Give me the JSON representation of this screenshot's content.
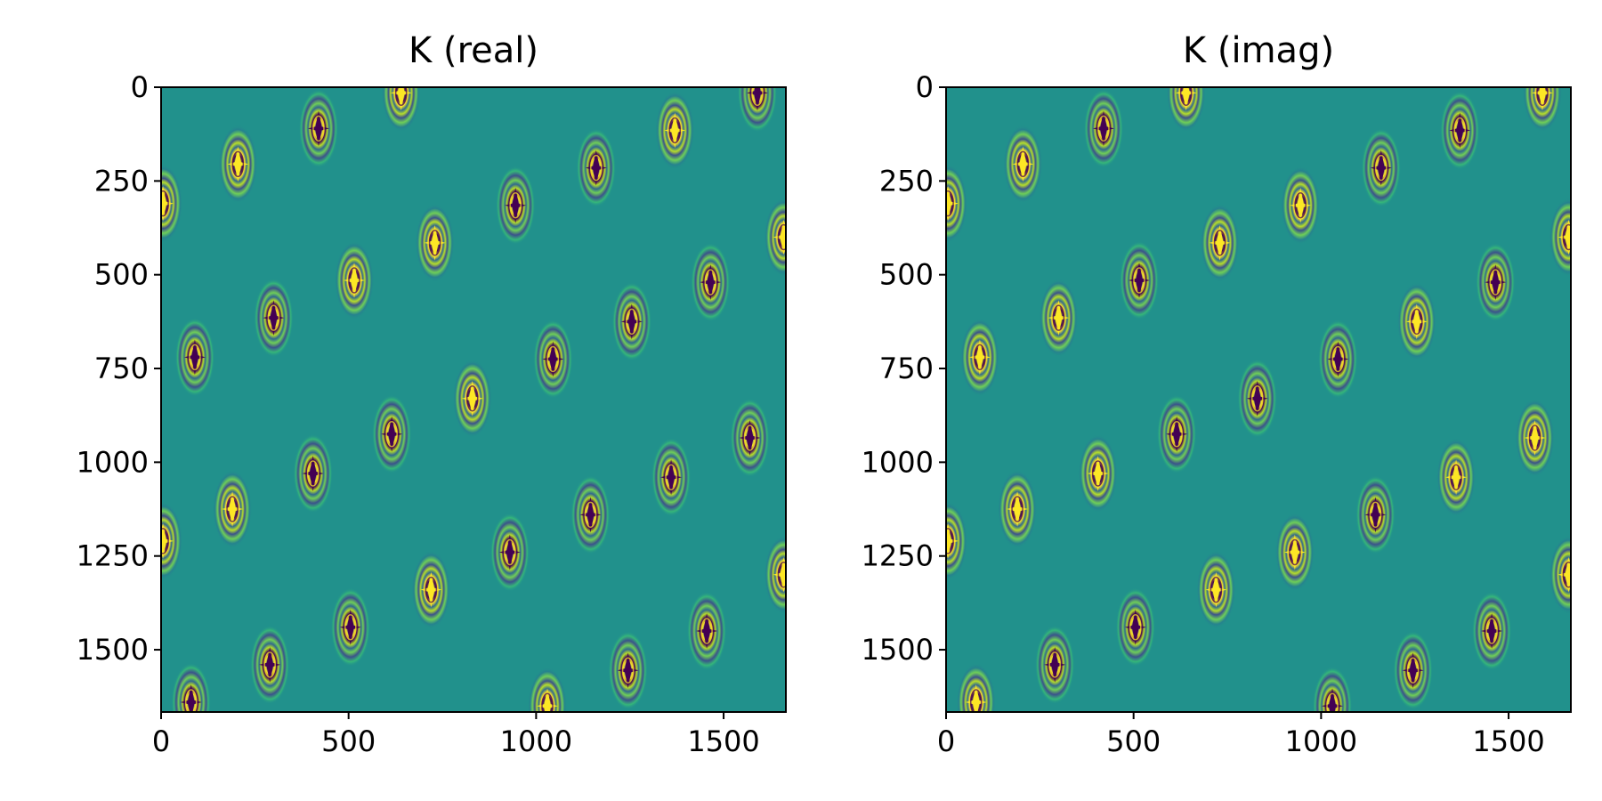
{
  "chart_data": [
    {
      "type": "heatmap",
      "title": "K (real)",
      "xlabel": "",
      "ylabel": "",
      "xlim": [
        0,
        1666
      ],
      "ylim": [
        1666,
        0
      ],
      "x_ticks": [
        "0",
        "500",
        "1000",
        "1500"
      ],
      "y_ticks": [
        "0",
        "250",
        "500",
        "750",
        "1000",
        "1250",
        "1500"
      ],
      "colormap": "viridis",
      "background_color": "#21918c",
      "grid": false,
      "spots": [
        {
          "x": 640,
          "y": 15,
          "sign": 1
        },
        {
          "x": 1590,
          "y": 15,
          "sign": -1
        },
        {
          "x": 420,
          "y": 110,
          "sign": -1
        },
        {
          "x": 1370,
          "y": 115,
          "sign": 1
        },
        {
          "x": 205,
          "y": 205,
          "sign": 1
        },
        {
          "x": 1160,
          "y": 215,
          "sign": -1
        },
        {
          "x": 945,
          "y": 315,
          "sign": -1
        },
        {
          "x": 730,
          "y": 415,
          "sign": 1
        },
        {
          "x": 515,
          "y": 515,
          "sign": 1
        },
        {
          "x": 1465,
          "y": 520,
          "sign": -1
        },
        {
          "x": 300,
          "y": 615,
          "sign": -1
        },
        {
          "x": 1255,
          "y": 625,
          "sign": -1
        },
        {
          "x": 90,
          "y": 720,
          "sign": -1
        },
        {
          "x": 1045,
          "y": 725,
          "sign": -1
        },
        {
          "x": 830,
          "y": 830,
          "sign": 1
        },
        {
          "x": 615,
          "y": 925,
          "sign": -1
        },
        {
          "x": 1570,
          "y": 935,
          "sign": -1
        },
        {
          "x": 405,
          "y": 1030,
          "sign": -1
        },
        {
          "x": 1360,
          "y": 1040,
          "sign": -1
        },
        {
          "x": 190,
          "y": 1125,
          "sign": 1
        },
        {
          "x": 1145,
          "y": 1140,
          "sign": -1
        },
        {
          "x": 930,
          "y": 1240,
          "sign": -1
        },
        {
          "x": 720,
          "y": 1340,
          "sign": 1
        },
        {
          "x": 505,
          "y": 1440,
          "sign": -1
        },
        {
          "x": 1455,
          "y": 1450,
          "sign": -1
        },
        {
          "x": 290,
          "y": 1540,
          "sign": -1
        },
        {
          "x": 1245,
          "y": 1555,
          "sign": -1
        },
        {
          "x": 80,
          "y": 1640,
          "sign": -1
        },
        {
          "x": 1030,
          "y": 1650,
          "sign": 1
        },
        {
          "x": 5,
          "y": 310,
          "sign": 1
        },
        {
          "x": 1660,
          "y": 400,
          "sign": 1
        },
        {
          "x": 5,
          "y": 1210,
          "sign": 1
        },
        {
          "x": 1660,
          "y": 1300,
          "sign": 1
        }
      ]
    },
    {
      "type": "heatmap",
      "title": "K (imag)",
      "xlabel": "",
      "ylabel": "",
      "xlim": [
        0,
        1666
      ],
      "ylim": [
        1666,
        0
      ],
      "x_ticks": [
        "0",
        "500",
        "1000",
        "1500"
      ],
      "y_ticks": [
        "0",
        "250",
        "500",
        "750",
        "1000",
        "1250",
        "1500"
      ],
      "colormap": "viridis",
      "background_color": "#21918c",
      "grid": false,
      "spots": [
        {
          "x": 640,
          "y": 15,
          "sign": 1
        },
        {
          "x": 1590,
          "y": 15,
          "sign": 1
        },
        {
          "x": 420,
          "y": 110,
          "sign": -1
        },
        {
          "x": 1370,
          "y": 115,
          "sign": -1
        },
        {
          "x": 205,
          "y": 205,
          "sign": 1
        },
        {
          "x": 1160,
          "y": 215,
          "sign": -1
        },
        {
          "x": 945,
          "y": 315,
          "sign": 1
        },
        {
          "x": 730,
          "y": 415,
          "sign": 1
        },
        {
          "x": 515,
          "y": 515,
          "sign": -1
        },
        {
          "x": 1465,
          "y": 520,
          "sign": -1
        },
        {
          "x": 300,
          "y": 615,
          "sign": 1
        },
        {
          "x": 1255,
          "y": 625,
          "sign": 1
        },
        {
          "x": 90,
          "y": 720,
          "sign": 1
        },
        {
          "x": 1045,
          "y": 725,
          "sign": -1
        },
        {
          "x": 830,
          "y": 830,
          "sign": -1
        },
        {
          "x": 615,
          "y": 925,
          "sign": -1
        },
        {
          "x": 1570,
          "y": 935,
          "sign": 1
        },
        {
          "x": 405,
          "y": 1030,
          "sign": 1
        },
        {
          "x": 1360,
          "y": 1040,
          "sign": 1
        },
        {
          "x": 190,
          "y": 1125,
          "sign": 1
        },
        {
          "x": 1145,
          "y": 1140,
          "sign": -1
        },
        {
          "x": 930,
          "y": 1240,
          "sign": 1
        },
        {
          "x": 720,
          "y": 1340,
          "sign": 1
        },
        {
          "x": 505,
          "y": 1440,
          "sign": -1
        },
        {
          "x": 1455,
          "y": 1450,
          "sign": -1
        },
        {
          "x": 290,
          "y": 1540,
          "sign": -1
        },
        {
          "x": 1245,
          "y": 1555,
          "sign": -1
        },
        {
          "x": 80,
          "y": 1640,
          "sign": 1
        },
        {
          "x": 1030,
          "y": 1650,
          "sign": -1
        },
        {
          "x": 5,
          "y": 310,
          "sign": 1
        },
        {
          "x": 1660,
          "y": 400,
          "sign": 1
        },
        {
          "x": 5,
          "y": 1210,
          "sign": 1
        },
        {
          "x": 1660,
          "y": 1300,
          "sign": 1
        }
      ]
    }
  ]
}
